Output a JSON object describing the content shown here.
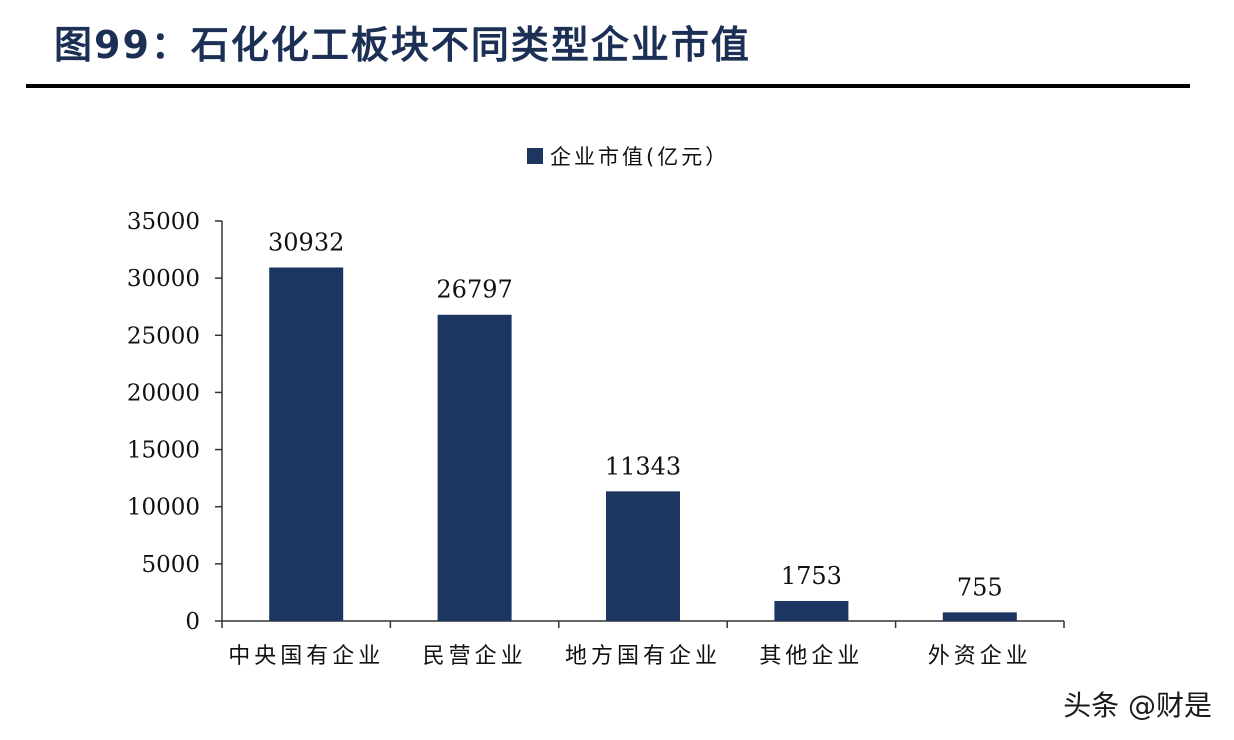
{
  "figure_title": "图99：石化化工板块不同类型企业市值",
  "watermark": "头条 @财是",
  "chart_data": {
    "type": "bar",
    "title": "",
    "xlabel": "",
    "ylabel": "",
    "categories": [
      "中央国有企业",
      "民营企业",
      "地方国有企业",
      "其他企业",
      "外资企业"
    ],
    "series": [
      {
        "name": "企业市值(亿元）",
        "values": [
          30932,
          26797,
          11343,
          1753,
          755
        ],
        "color": "#1c3561"
      }
    ],
    "data_labels": [
      "30932",
      "26797",
      "11343",
      "1753",
      "755"
    ],
    "yticks": [
      "0",
      "5000",
      "10000",
      "15000",
      "20000",
      "25000",
      "30000",
      "35000"
    ],
    "ylim": [
      0,
      35000
    ],
    "grid": false,
    "legend_position": "top-center"
  }
}
